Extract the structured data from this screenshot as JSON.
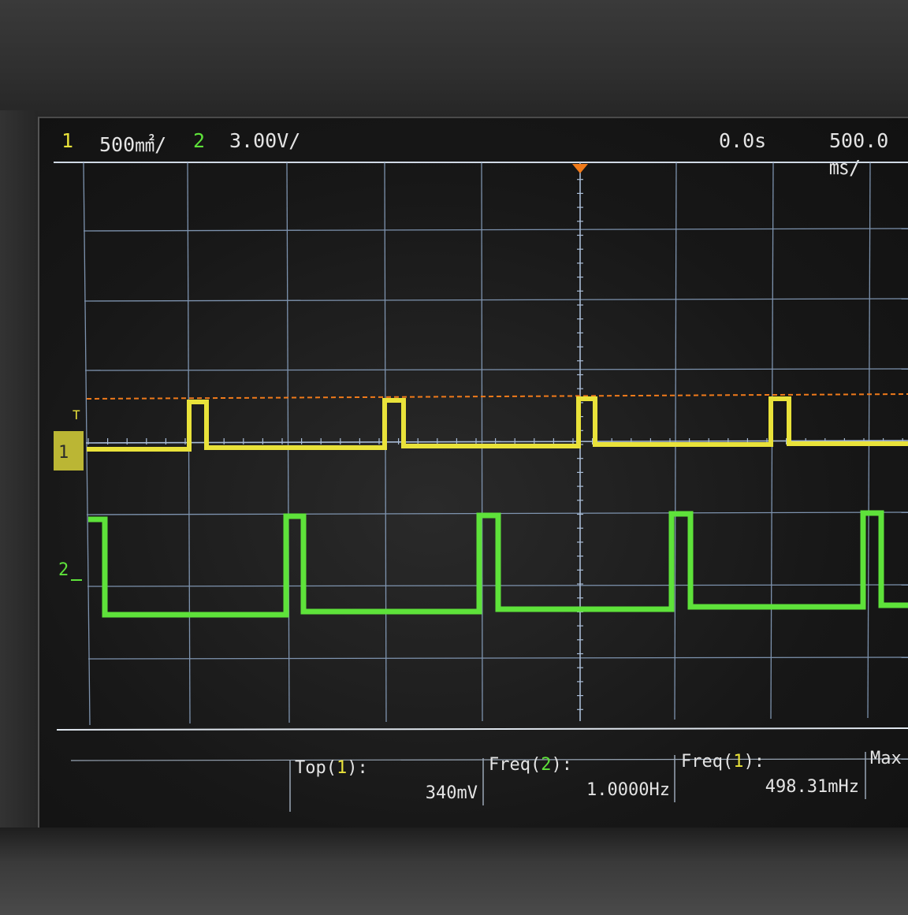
{
  "header": {
    "ch1_number": "1",
    "ch1_scale": "500㎟/",
    "ch2_number": "2",
    "ch2_scale": "3.00V/",
    "time_delay": "0.0s",
    "time_scale": "500.0㎳/"
  },
  "markers": {
    "trigger_label": "T",
    "ch1_ground_label": "1",
    "ch2_ground_label": "2"
  },
  "measurements": [
    {
      "name_prefix": "Top(",
      "channel": "1",
      "name_suffix": "):",
      "value": "340mV"
    },
    {
      "name_prefix": "Freq(",
      "channel": "2",
      "name_suffix": "):",
      "value": "1.0000Hz"
    },
    {
      "name_prefix": "Freq(",
      "channel": "1",
      "name_suffix": "):",
      "value": "498.31mHz"
    },
    {
      "name_prefix": "Max",
      "channel": "",
      "name_suffix": "",
      "value": ""
    }
  ],
  "colors": {
    "channel1": "#e9e23a",
    "channel2": "#5ee23a",
    "trigger_level": "#f07a1a",
    "grid": "#8fa8c8"
  }
}
